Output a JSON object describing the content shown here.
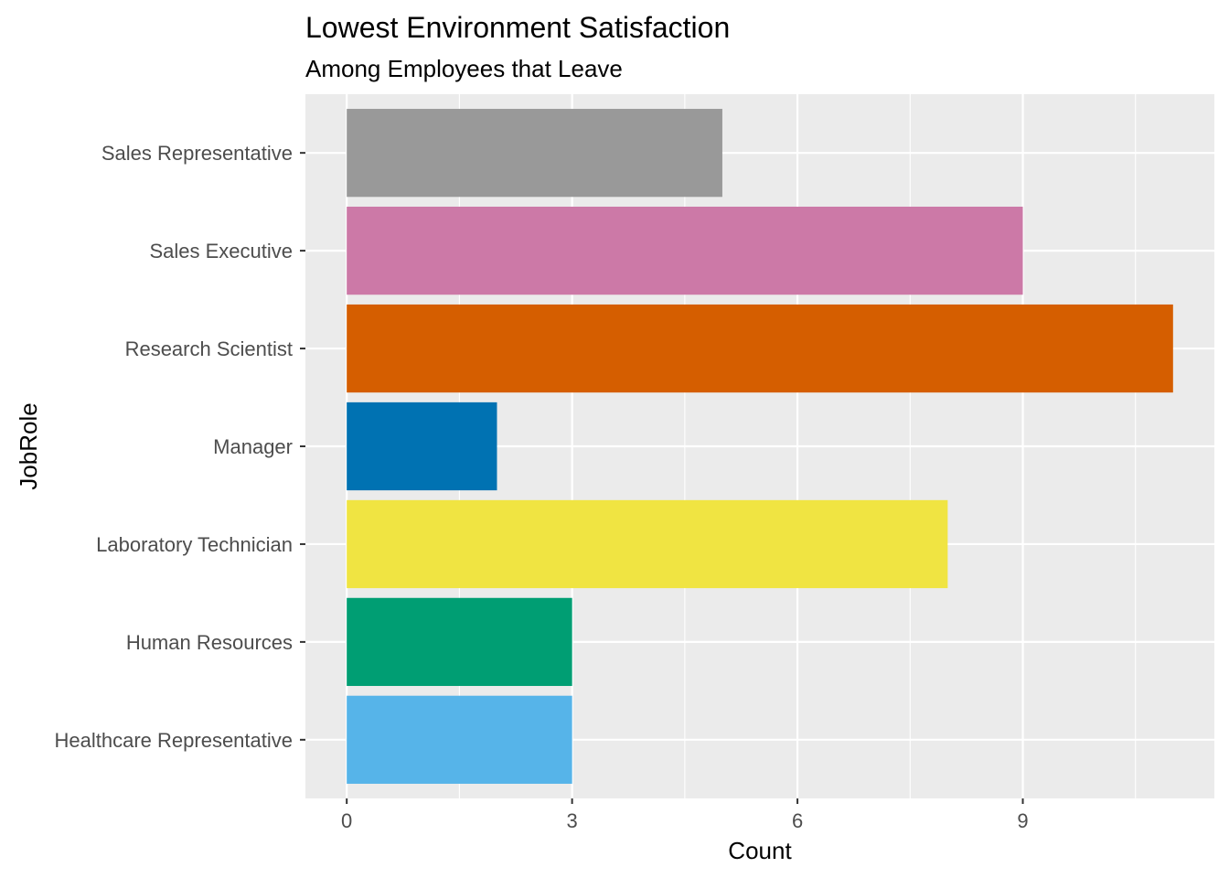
{
  "chart_data": {
    "type": "bar",
    "orientation": "horizontal",
    "title": "Lowest Environment Satisfaction",
    "subtitle": "Among Employees that Leave",
    "xlabel": "Count",
    "ylabel": "JobRole",
    "xlim": [
      -0.55,
      11.55
    ],
    "x_ticks": [
      0,
      3,
      6,
      9
    ],
    "grid": true,
    "panel_background": "#EBEBEB",
    "categories": [
      "Healthcare Representative",
      "Human Resources",
      "Laboratory Technician",
      "Manager",
      "Research Scientist",
      "Sales Executive",
      "Sales Representative"
    ],
    "values": [
      3,
      3,
      8,
      2,
      11,
      9,
      5
    ],
    "colors": [
      "#56B4E9",
      "#009E73",
      "#F0E442",
      "#0072B2",
      "#D55E00",
      "#CC79A7",
      "#999999"
    ]
  }
}
